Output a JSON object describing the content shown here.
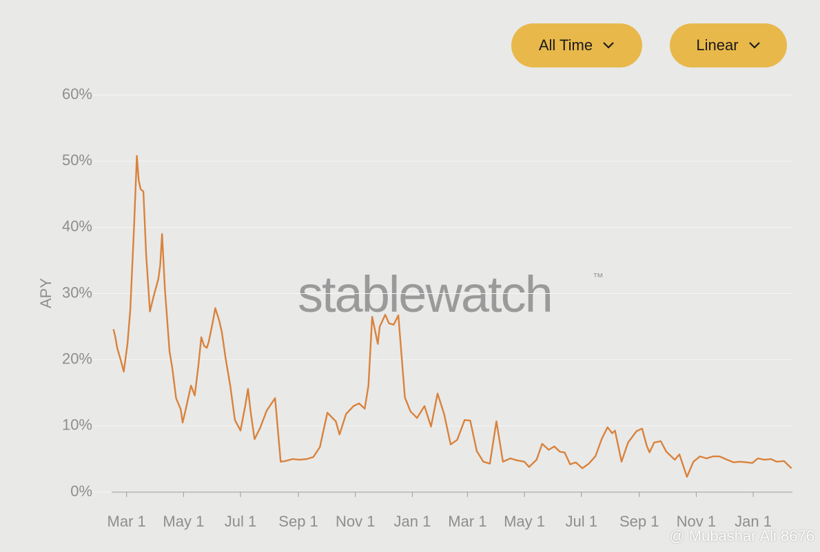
{
  "controls": {
    "range": "All Time",
    "scale": "Linear"
  },
  "watermark": {
    "brand": "stablewatch",
    "mark": "™",
    "credit": "@ Mubashar Ali 8676"
  },
  "chart_data": {
    "type": "line",
    "y_label": "APY",
    "grid": true,
    "x": [
      -14,
      -12,
      -10,
      -6,
      -3,
      1,
      4,
      8,
      11,
      13,
      15,
      18,
      21,
      25,
      29,
      34,
      36,
      38,
      41,
      46,
      49,
      53,
      58,
      60,
      63,
      66,
      69,
      73,
      77,
      80,
      83,
      86,
      88,
      92,
      95,
      99,
      102,
      106,
      111,
      116,
      122,
      127,
      130,
      133,
      137,
      143,
      150,
      159,
      165,
      170,
      178,
      185,
      193,
      200,
      207,
      215,
      224,
      228,
      235,
      243,
      249,
      255,
      259,
      263,
      269,
      271,
      277,
      281,
      286,
      291,
      298,
      304,
      311,
      319,
      326,
      333,
      340,
      347,
      354,
      362,
      368,
      375,
      382,
      389,
      396,
      403,
      411,
      418,
      426,
      431,
      439,
      445,
      452,
      458,
      464,
      469,
      475,
      481,
      488,
      495,
      502,
      509,
      515,
      520,
      523,
      530,
      537,
      546,
      552,
      557,
      560,
      565,
      572,
      578,
      587,
      592,
      600,
      607,
      614,
      621,
      628,
      635,
      643,
      650,
      657,
      664,
      670,
      676,
      683,
      690,
      696,
      704,
      712
    ],
    "series": [
      {
        "name": "APY",
        "color": "#d9823b",
        "values": [
          24.6,
          23.4,
          21.8,
          19.8,
          18.2,
          22.4,
          27.6,
          40.0,
          50.8,
          47.1,
          45.8,
          45.4,
          35.9,
          27.3,
          29.6,
          32.2,
          34.3,
          39.0,
          30.7,
          21.3,
          18.7,
          14.2,
          12.5,
          10.5,
          12.3,
          14.2,
          16.1,
          14.6,
          19.2,
          23.4,
          22.1,
          21.8,
          22.7,
          25.5,
          27.8,
          26.0,
          24.2,
          20.3,
          16.1,
          10.9,
          9.3,
          13.0,
          15.6,
          12.0,
          8.0,
          9.7,
          12.3,
          14.2,
          4.6,
          4.7,
          5.0,
          4.9,
          5.0,
          5.3,
          6.8,
          12.0,
          10.7,
          8.7,
          11.8,
          13.0,
          13.4,
          12.6,
          16.1,
          26.5,
          22.4,
          25.0,
          26.8,
          25.5,
          25.3,
          26.7,
          14.3,
          12.2,
          11.2,
          13.0,
          9.9,
          14.9,
          11.8,
          7.2,
          7.9,
          10.9,
          10.8,
          6.2,
          4.6,
          4.3,
          10.7,
          4.6,
          5.1,
          4.8,
          4.6,
          3.8,
          4.9,
          7.3,
          6.4,
          6.9,
          6.1,
          6.0,
          4.2,
          4.5,
          3.6,
          4.3,
          5.4,
          8.1,
          9.8,
          8.9,
          9.3,
          4.6,
          7.5,
          9.2,
          9.6,
          7.0,
          6.0,
          7.5,
          7.7,
          6.1,
          4.9,
          5.7,
          2.3,
          4.6,
          5.4,
          5.1,
          5.4,
          5.4,
          4.9,
          4.5,
          4.6,
          4.5,
          4.4,
          5.1,
          4.9,
          5.0,
          4.6,
          4.7,
          3.6
        ]
      }
    ],
    "xlim": [
      -16,
      713
    ],
    "xticks": [
      {
        "value": 0,
        "label": "Mar 1"
      },
      {
        "value": 61,
        "label": "May 1"
      },
      {
        "value": 122,
        "label": "Jul 1"
      },
      {
        "value": 184,
        "label": "Sep 1"
      },
      {
        "value": 245,
        "label": "Nov 1"
      },
      {
        "value": 306,
        "label": "Jan 1"
      },
      {
        "value": 365,
        "label": "Mar 1"
      },
      {
        "value": 426,
        "label": "May 1"
      },
      {
        "value": 487,
        "label": "Jul 1"
      },
      {
        "value": 549,
        "label": "Sep 1"
      },
      {
        "value": 610,
        "label": "Nov 1"
      },
      {
        "value": 671,
        "label": "Jan 1"
      }
    ],
    "ylim": [
      0,
      60
    ],
    "yticks": [
      {
        "value": 0,
        "label": "0%"
      },
      {
        "value": 10,
        "label": "10%"
      },
      {
        "value": 20,
        "label": "20%"
      },
      {
        "value": 30,
        "label": "30%"
      },
      {
        "value": 40,
        "label": "40%"
      },
      {
        "value": 50,
        "label": "50%"
      },
      {
        "value": 60,
        "label": "60%"
      }
    ]
  }
}
